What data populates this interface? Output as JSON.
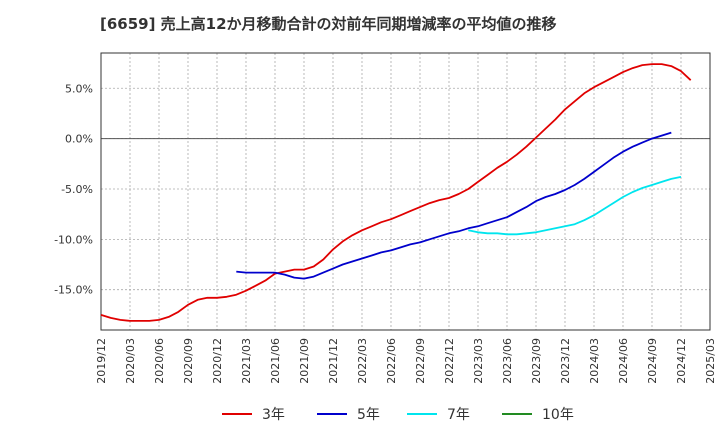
{
  "chart_data": {
    "type": "line",
    "title": "[6659]  売上高12か月移動合計の対前年同期増減率の平均値の推移",
    "xlabel": "",
    "ylabel": "",
    "ylim": [
      -19,
      8.5
    ],
    "yticks": [
      5,
      0,
      -5,
      -10,
      -15
    ],
    "ytick_labels": [
      "5.0%",
      "0.0%",
      "-5.0%",
      "-10.0%",
      "-15.0%"
    ],
    "xtick_labels": [
      "2019/12",
      "2020/03",
      "2020/06",
      "2020/09",
      "2020/12",
      "2021/03",
      "2021/06",
      "2021/09",
      "2021/12",
      "2022/03",
      "2022/06",
      "2022/09",
      "2022/12",
      "2023/03",
      "2023/06",
      "2023/09",
      "2023/12",
      "2024/03",
      "2024/06",
      "2024/09",
      "2024/12",
      "2025/03"
    ],
    "grid": true,
    "legend_position": "bottom",
    "series": [
      {
        "name": "3年",
        "color": "#e00000",
        "values": [
          -17.5,
          -17.8,
          -18.0,
          -18.1,
          -18.1,
          -18.1,
          -18.0,
          -17.7,
          -17.2,
          -16.5,
          -16.0,
          -15.8,
          -15.8,
          -15.7,
          -15.5,
          -15.1,
          -14.6,
          -14.1,
          -13.4,
          -13.2,
          -13.0,
          -13.0,
          -12.7,
          -12.0,
          -11.0,
          -10.2,
          -9.6,
          -9.1,
          -8.7,
          -8.3,
          -8.0,
          -7.6,
          -7.2,
          -6.8,
          -6.4,
          -6.1,
          -5.9,
          -5.5,
          -5.0,
          -4.3,
          -3.6,
          -2.9,
          -2.3,
          -1.6,
          -0.8,
          0.1,
          1.0,
          1.9,
          2.9,
          3.7,
          4.5,
          5.1,
          5.6,
          6.1,
          6.6,
          7.0,
          7.3,
          7.4,
          7.4,
          7.2,
          6.7,
          5.8
        ]
      },
      {
        "name": "5年",
        "color": "#0000cc",
        "values": [
          null,
          null,
          null,
          null,
          null,
          null,
          null,
          null,
          null,
          null,
          null,
          null,
          null,
          null,
          -13.2,
          -13.3,
          -13.3,
          -13.3,
          -13.3,
          -13.5,
          -13.8,
          -13.9,
          -13.7,
          -13.3,
          -12.9,
          -12.5,
          -12.2,
          -11.9,
          -11.6,
          -11.3,
          -11.1,
          -10.8,
          -10.5,
          -10.3,
          -10.0,
          -9.7,
          -9.4,
          -9.2,
          -8.9,
          -8.7,
          -8.4,
          -8.1,
          -7.8,
          -7.3,
          -6.8,
          -6.2,
          -5.8,
          -5.5,
          -5.1,
          -4.6,
          -4.0,
          -3.3,
          -2.6,
          -1.9,
          -1.3,
          -0.8,
          -0.4,
          0.0,
          0.3,
          0.6
        ]
      },
      {
        "name": "7年",
        "color": "#00e5ee",
        "values": [
          null,
          null,
          null,
          null,
          null,
          null,
          null,
          null,
          null,
          null,
          null,
          null,
          null,
          null,
          null,
          null,
          null,
          null,
          null,
          null,
          null,
          null,
          null,
          null,
          null,
          null,
          null,
          null,
          null,
          null,
          null,
          null,
          null,
          null,
          null,
          null,
          null,
          null,
          -9.1,
          -9.3,
          -9.4,
          -9.4,
          -9.5,
          -9.5,
          -9.4,
          -9.3,
          -9.1,
          -8.9,
          -8.7,
          -8.5,
          -8.1,
          -7.6,
          -7.0,
          -6.4,
          -5.8,
          -5.3,
          -4.9,
          -4.6,
          -4.3,
          -4.0,
          -3.8
        ]
      },
      {
        "name": "10年",
        "color": "#228b22",
        "values": []
      }
    ]
  }
}
